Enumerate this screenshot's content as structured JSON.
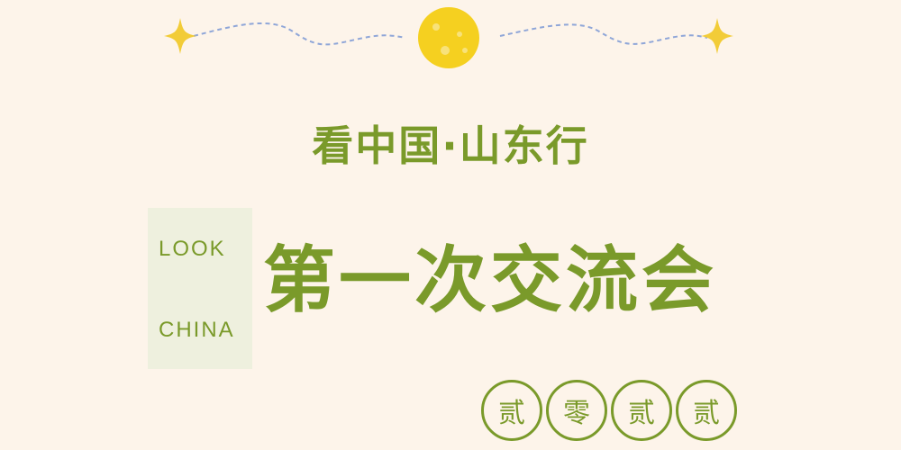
{
  "subtitle": "看中国·山东行",
  "side_label": {
    "top": "LOOK",
    "bottom": "CHINA"
  },
  "main_title": "第一次交流会",
  "year_chars": [
    "贰",
    "零",
    "贰",
    "贰"
  ],
  "decorations": {
    "left": "sparkle-icon",
    "center": "moon-icon",
    "right": "sparkle-icon"
  },
  "colors": {
    "background": "#fdf4ea",
    "accent_green": "#7a9a2a",
    "label_box": "#eef0de",
    "moon": "#f5d020",
    "sparkle": "#f2cc38",
    "dashed_line": "#8fa6d8"
  }
}
